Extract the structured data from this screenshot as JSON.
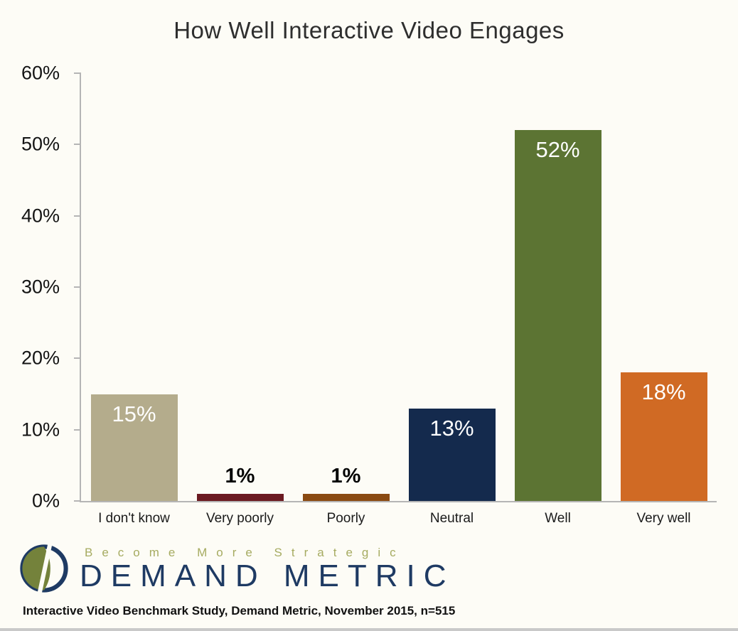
{
  "chart_data": {
    "type": "bar",
    "title": "How Well Interactive Video Engages",
    "categories": [
      "I don't know",
      "Very poorly",
      "Poorly",
      "Neutral",
      "Well",
      "Very well"
    ],
    "values": [
      15,
      1,
      1,
      13,
      52,
      18
    ],
    "value_labels": [
      "15%",
      "1%",
      "1%",
      "13%",
      "52%",
      "18%"
    ],
    "label_positions": [
      "inside",
      "above",
      "above",
      "inside",
      "inside",
      "inside"
    ],
    "bar_colors": [
      "#b4ac8c",
      "#6b1a21",
      "#8a4a12",
      "#142a4d",
      "#5c7433",
      "#d06a24"
    ],
    "label_color_inside": "#ffffff",
    "label_color_above": "#000000",
    "xlabel": "",
    "ylabel": "",
    "ylim": [
      0,
      60
    ],
    "yticks": [
      "0%",
      "10%",
      "20%",
      "30%",
      "40%",
      "50%",
      "60%"
    ],
    "grid": false,
    "legend": "none"
  },
  "branding": {
    "tagline": "Become More Strategic",
    "brand_name": "DEMAND METRIC",
    "logo": "demand-metric-logo",
    "brand_navy": "#1e3a63",
    "brand_olive": "#74823b"
  },
  "source_note": "Interactive Video Benchmark Study, Demand Metric, November 2015, n=515"
}
